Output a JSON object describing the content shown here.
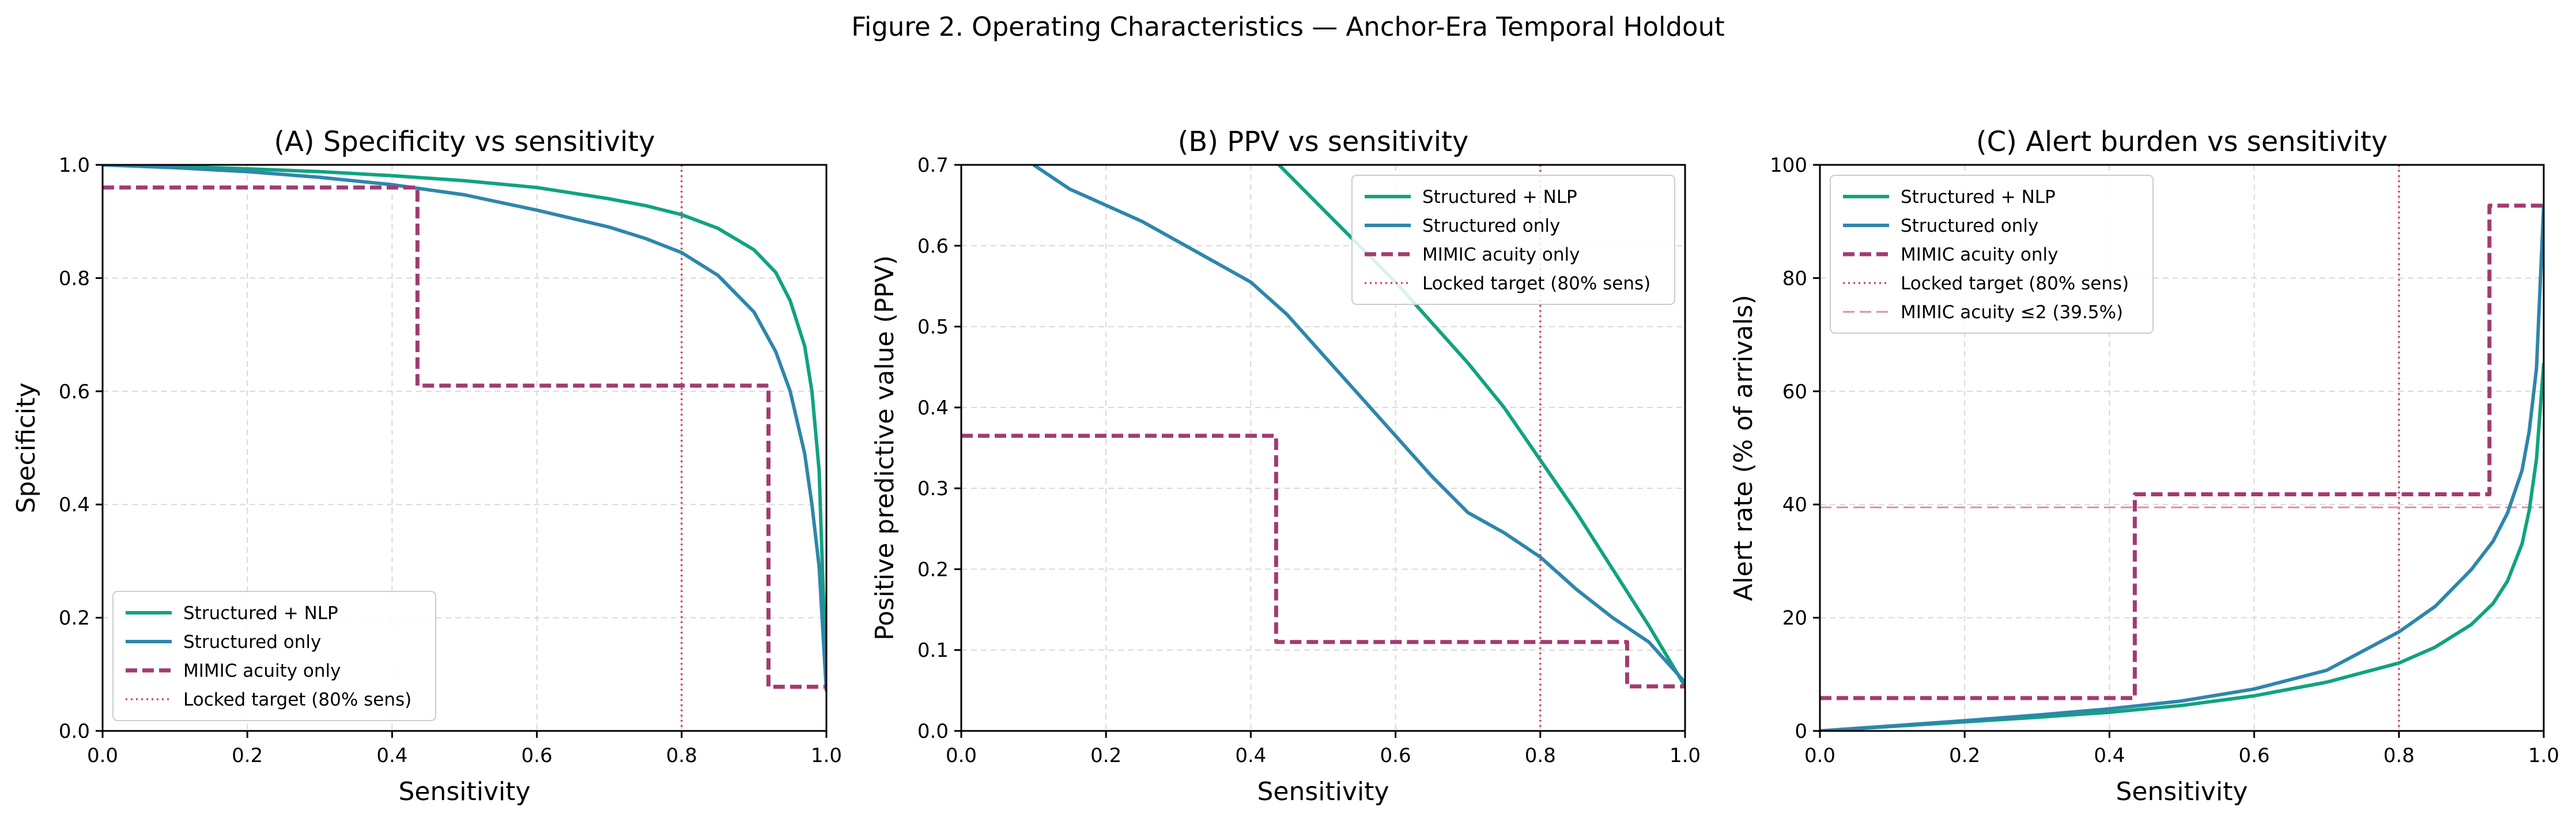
{
  "figure": {
    "title": "Figure 2. Operating Characteristics — Anchor-Era Temporal Holdout"
  },
  "colors": {
    "nlp": "#10a37f",
    "structured": "#2e86ab",
    "mimic": "#a23b72",
    "locked": "#d1495b",
    "acuity_ref": "#d98fb0",
    "grid": "#d9d9d9"
  },
  "chart_data": [
    {
      "type": "line",
      "panel": "A",
      "title": "(A) Specificity vs sensitivity",
      "xlabel": "Sensitivity",
      "ylabel": "Specificity",
      "xlim": [
        0,
        1
      ],
      "ylim": [
        0,
        1
      ],
      "xticks": [
        0,
        0.2,
        0.4,
        0.6,
        0.8,
        1
      ],
      "xtick_labels": [
        "0.0",
        "0.2",
        "0.4",
        "0.6",
        "0.8",
        "1.0"
      ],
      "yticks": [
        0,
        0.2,
        0.4,
        0.6,
        0.8,
        1
      ],
      "ytick_labels": [
        "0.0",
        "0.2",
        "0.4",
        "0.6",
        "0.8",
        "1.0"
      ],
      "grid": true,
      "legend_position": "lower-left",
      "series": [
        {
          "name": "Structured + NLP",
          "style": "solid",
          "color_key": "nlp",
          "x": [
            0,
            0.1,
            0.2,
            0.3,
            0.4,
            0.5,
            0.6,
            0.7,
            0.75,
            0.8,
            0.85,
            0.9,
            0.93,
            0.95,
            0.97,
            0.98,
            0.99,
            1.0
          ],
          "y": [
            1.0,
            0.997,
            0.993,
            0.988,
            0.981,
            0.972,
            0.96,
            0.94,
            0.928,
            0.912,
            0.888,
            0.85,
            0.81,
            0.76,
            0.68,
            0.6,
            0.46,
            0.08
          ]
        },
        {
          "name": "Structured only",
          "style": "solid",
          "color_key": "structured",
          "x": [
            0,
            0.1,
            0.2,
            0.3,
            0.4,
            0.5,
            0.6,
            0.7,
            0.75,
            0.8,
            0.85,
            0.9,
            0.93,
            0.95,
            0.97,
            0.98,
            0.99,
            1.0
          ],
          "y": [
            1.0,
            0.995,
            0.988,
            0.978,
            0.965,
            0.947,
            0.92,
            0.89,
            0.87,
            0.845,
            0.805,
            0.74,
            0.67,
            0.6,
            0.49,
            0.4,
            0.29,
            0.07
          ]
        },
        {
          "name": "MIMIC acuity only",
          "style": "dashed",
          "color_key": "mimic",
          "x": [
            0,
            0.435,
            0.435,
            0.92,
            0.92,
            1.0
          ],
          "y": [
            0.96,
            0.96,
            0.61,
            0.61,
            0.078,
            0.078
          ]
        }
      ],
      "reference_lines": [
        {
          "name": "Locked target (80% sens)",
          "orientation": "vertical",
          "value": 0.8,
          "style": "dotted",
          "color_key": "locked"
        }
      ]
    },
    {
      "type": "line",
      "panel": "B",
      "title": "(B) PPV vs sensitivity",
      "xlabel": "Sensitivity",
      "ylabel": "Positive predictive value (PPV)",
      "xlim": [
        0,
        1
      ],
      "ylim": [
        0,
        0.7
      ],
      "xticks": [
        0,
        0.2,
        0.4,
        0.6,
        0.8,
        1
      ],
      "xtick_labels": [
        "0.0",
        "0.2",
        "0.4",
        "0.6",
        "0.8",
        "1.0"
      ],
      "yticks": [
        0,
        0.1,
        0.2,
        0.3,
        0.4,
        0.5,
        0.6,
        0.7
      ],
      "ytick_labels": [
        "0.0",
        "0.1",
        "0.2",
        "0.3",
        "0.4",
        "0.5",
        "0.6",
        "0.7"
      ],
      "grid": true,
      "legend_position": "upper-right",
      "series": [
        {
          "name": "Structured + NLP",
          "style": "solid",
          "color_key": "nlp",
          "x": [
            0.4,
            0.45,
            0.5,
            0.55,
            0.6,
            0.65,
            0.7,
            0.75,
            0.8,
            0.85,
            0.9,
            0.95,
            1.0
          ],
          "y": [
            0.735,
            0.69,
            0.645,
            0.6,
            0.555,
            0.505,
            0.455,
            0.4,
            0.335,
            0.27,
            0.2,
            0.13,
            0.055
          ]
        },
        {
          "name": "Structured only",
          "style": "solid",
          "color_key": "structured",
          "x": [
            0.1,
            0.15,
            0.2,
            0.25,
            0.3,
            0.35,
            0.4,
            0.45,
            0.5,
            0.55,
            0.6,
            0.65,
            0.7,
            0.75,
            0.8,
            0.85,
            0.9,
            0.95,
            1.0
          ],
          "y": [
            0.7,
            0.67,
            0.65,
            0.63,
            0.605,
            0.58,
            0.555,
            0.515,
            0.465,
            0.415,
            0.365,
            0.315,
            0.27,
            0.245,
            0.215,
            0.175,
            0.14,
            0.11,
            0.06
          ]
        },
        {
          "name": "MIMIC acuity only",
          "style": "dashed",
          "color_key": "mimic",
          "x": [
            0,
            0.435,
            0.435,
            0.92,
            0.92,
            1.0
          ],
          "y": [
            0.365,
            0.365,
            0.11,
            0.11,
            0.055,
            0.055
          ]
        }
      ],
      "reference_lines": [
        {
          "name": "Locked target (80% sens)",
          "orientation": "vertical",
          "value": 0.8,
          "style": "dotted",
          "color_key": "locked"
        }
      ]
    },
    {
      "type": "line",
      "panel": "C",
      "title": "(C) Alert burden vs sensitivity",
      "xlabel": "Sensitivity",
      "ylabel": "Alert rate (% of arrivals)",
      "xlim": [
        0,
        1
      ],
      "ylim": [
        0,
        100
      ],
      "xticks": [
        0,
        0.2,
        0.4,
        0.6,
        0.8,
        1
      ],
      "xtick_labels": [
        "0.0",
        "0.2",
        "0.4",
        "0.6",
        "0.8",
        "1.0"
      ],
      "yticks": [
        0,
        20,
        40,
        60,
        80,
        100
      ],
      "ytick_labels": [
        "0",
        "20",
        "40",
        "60",
        "80",
        "100"
      ],
      "grid": true,
      "legend_position": "upper-left",
      "series": [
        {
          "name": "Structured + NLP",
          "style": "solid",
          "color_key": "nlp",
          "x": [
            0,
            0.1,
            0.2,
            0.3,
            0.4,
            0.5,
            0.6,
            0.7,
            0.8,
            0.85,
            0.9,
            0.93,
            0.95,
            0.97,
            0.98,
            0.99,
            1.0
          ],
          "y": [
            0,
            0.8,
            1.6,
            2.4,
            3.3,
            4.5,
            6.2,
            8.6,
            12.0,
            14.8,
            18.8,
            22.5,
            26.5,
            33.0,
            39.0,
            48.0,
            65.0
          ]
        },
        {
          "name": "Structured only",
          "style": "solid",
          "color_key": "structured",
          "x": [
            0,
            0.1,
            0.2,
            0.3,
            0.4,
            0.5,
            0.6,
            0.7,
            0.8,
            0.85,
            0.9,
            0.93,
            0.95,
            0.97,
            0.98,
            0.99,
            1.0
          ],
          "y": [
            0,
            0.9,
            1.8,
            2.8,
            3.9,
            5.3,
            7.4,
            10.7,
            17.5,
            22.0,
            28.5,
            33.5,
            38.5,
            46.0,
            53.0,
            64.0,
            93.0
          ]
        },
        {
          "name": "MIMIC acuity only",
          "style": "dashed",
          "color_key": "mimic",
          "x": [
            0,
            0.435,
            0.435,
            0.925,
            0.925,
            1.0
          ],
          "y": [
            5.8,
            5.8,
            41.8,
            41.8,
            92.8,
            92.8
          ]
        }
      ],
      "reference_lines": [
        {
          "name": "Locked target (80% sens)",
          "orientation": "vertical",
          "value": 0.8,
          "style": "dotted",
          "color_key": "locked"
        },
        {
          "name": "MIMIC acuity ≤2 (39.5%)",
          "orientation": "horizontal",
          "value": 39.5,
          "style": "dashed",
          "color_key": "acuity_ref"
        }
      ]
    }
  ]
}
